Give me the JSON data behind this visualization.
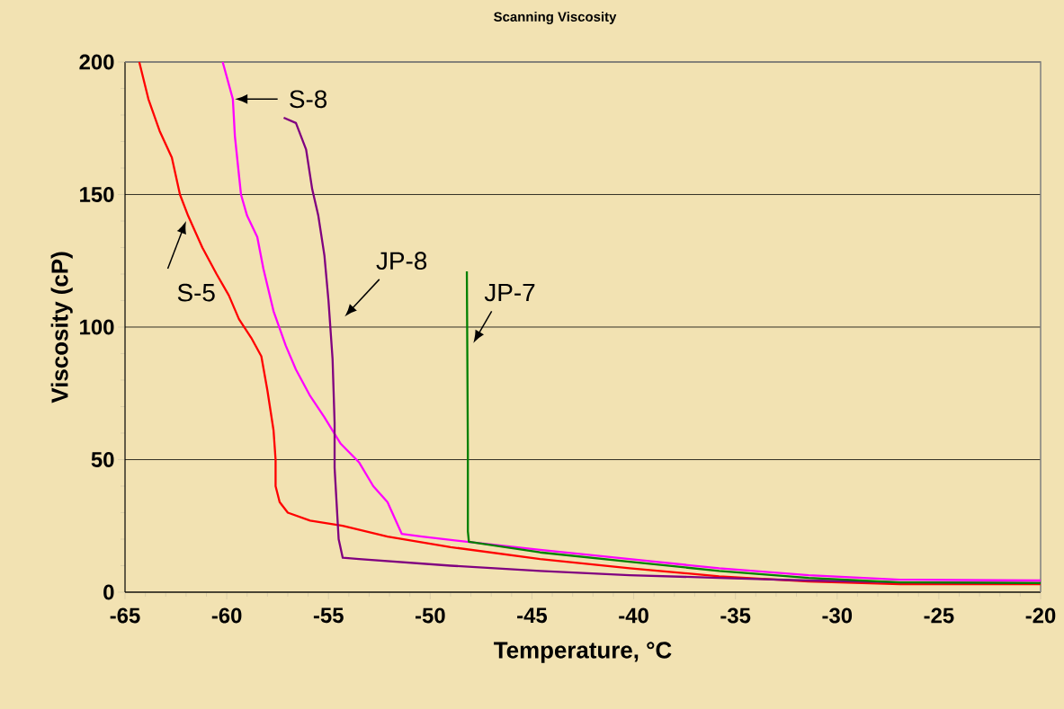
{
  "chart_data": {
    "type": "line",
    "title": "Scanning Viscosity",
    "xlabel": "Temperature, °C",
    "ylabel": "Viscosity (cP)",
    "xlim": [
      -65,
      -20
    ],
    "ylim": [
      0,
      200
    ],
    "xticks": [
      -65,
      -60,
      -55,
      -50,
      -45,
      -40,
      -35,
      -30,
      -25,
      -20
    ],
    "yticks": [
      0,
      50,
      100,
      150,
      200
    ],
    "annotations": [
      {
        "text": "S-5",
        "x": -61.9,
        "y": 142
      },
      {
        "text": "S-8",
        "x": -59.7,
        "y": 186
      },
      {
        "text": "JP-8",
        "x": -55.0,
        "y": 110
      },
      {
        "text": "JP-7",
        "x": -48.18,
        "y": 94
      }
    ],
    "grid": "y",
    "marker": "none",
    "line_style": "solid",
    "series": [
      {
        "color": "#ff0000",
        "x": [
          -64.3,
          -63.85,
          -63.3,
          -62.7,
          -62.3,
          -61.9,
          -61.2,
          -60.5,
          -59.9,
          -59.4,
          -58.8,
          -58.3,
          -58.0,
          -57.7,
          -57.6,
          -57.6,
          -57.4,
          -57.0,
          -55.9,
          -54.3,
          -52.1,
          -49.0,
          -44.6,
          -40.2,
          -35.8,
          -31.4,
          -26.9,
          -20
        ],
        "values": [
          200,
          186,
          174,
          164,
          150,
          142,
          130,
          120,
          112,
          103,
          96,
          89,
          76,
          61,
          50,
          40,
          34,
          30,
          27,
          25,
          21,
          17,
          12.5,
          9,
          6,
          4,
          3,
          3
        ]
      },
      {
        "color": "#ff00ff",
        "x": [
          -60.2,
          -59.7,
          -59.6,
          -59.3,
          -59.0,
          -58.5,
          -58.2,
          -57.7,
          -57.1,
          -56.6,
          -55.9,
          -55.2,
          -54.4,
          -53.5,
          -52.8,
          -52.1,
          -51.4,
          -50.4,
          -48.2,
          -44.6,
          -40.2,
          -35.8,
          -31.4,
          -26.9,
          -20
        ],
        "values": [
          200,
          186,
          172,
          150,
          142,
          134,
          122,
          106,
          93,
          84,
          74,
          66,
          56,
          49,
          40,
          34,
          22,
          21,
          19,
          16,
          12.5,
          9,
          6.4,
          4.7,
          4.4
        ]
      },
      {
        "color": "#800080",
        "x": [
          -57.2,
          -56.6,
          -56.1,
          -55.8,
          -55.5,
          -55.2,
          -55.0,
          -54.8,
          -54.7,
          -54.7,
          -54.5,
          -54.3,
          -53.5,
          -49.0,
          -44.6,
          -40.2,
          -35.8,
          -31.4,
          -26.9,
          -20
        ],
        "values": [
          179,
          177,
          167,
          152,
          142,
          127,
          110,
          88,
          64,
          47,
          20,
          13,
          12.5,
          10,
          8,
          6.4,
          5.4,
          4.4,
          3.7,
          3.4
        ]
      },
      {
        "color": "#008000",
        "x": [
          -48.2,
          -48.15,
          -48.15,
          -48.1,
          -44.6,
          -40.2,
          -35.8,
          -31.4,
          -26.9,
          -20
        ],
        "values": [
          121,
          54,
          23,
          19,
          15,
          11.5,
          8,
          5.4,
          3.7,
          3.4
        ]
      }
    ]
  }
}
